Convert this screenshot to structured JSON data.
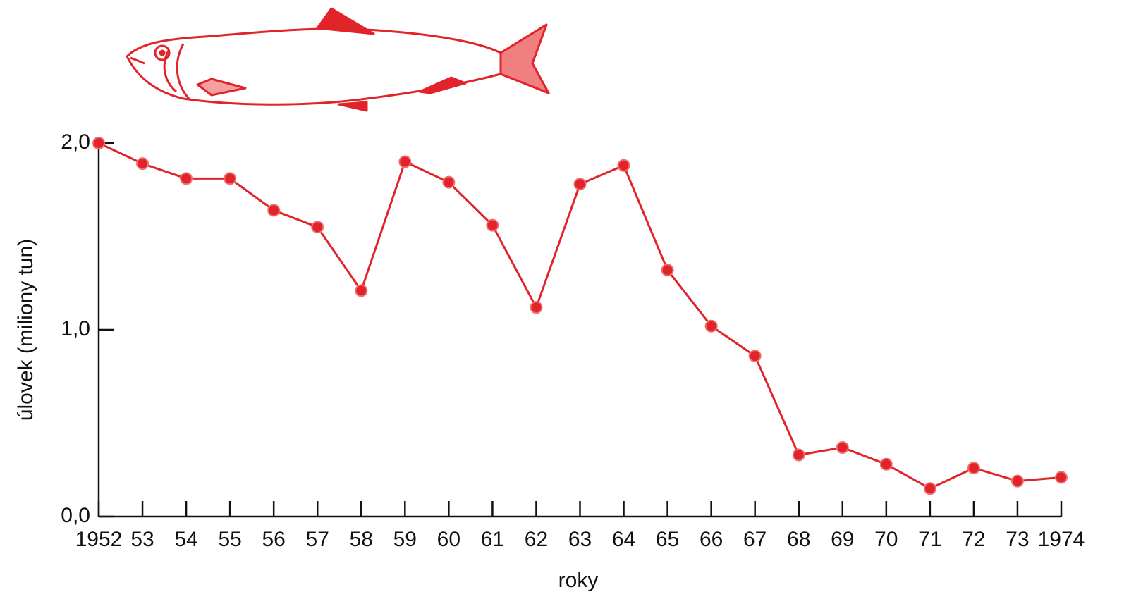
{
  "chart_data": {
    "type": "line",
    "x_label": "roky",
    "y_label": "úlovek (miliony tun)",
    "categories": [
      "1952",
      "53",
      "54",
      "55",
      "56",
      "57",
      "58",
      "59",
      "60",
      "61",
      "62",
      "63",
      "64",
      "65",
      "66",
      "67",
      "68",
      "69",
      "70",
      "71",
      "72",
      "73",
      "1974"
    ],
    "values": [
      2.0,
      1.89,
      1.81,
      1.81,
      1.64,
      1.55,
      1.21,
      1.9,
      1.79,
      1.56,
      1.12,
      1.78,
      1.88,
      1.32,
      1.02,
      0.86,
      0.33,
      0.37,
      0.28,
      0.15,
      0.26,
      0.19,
      0.21
    ],
    "color": "#e0242a",
    "ylim": [
      0,
      2
    ],
    "yticks": [
      {
        "value": 0,
        "label": "0,0"
      },
      {
        "value": 1,
        "label": "1,0"
      },
      {
        "value": 2,
        "label": "2,0"
      }
    ],
    "grid": false
  }
}
